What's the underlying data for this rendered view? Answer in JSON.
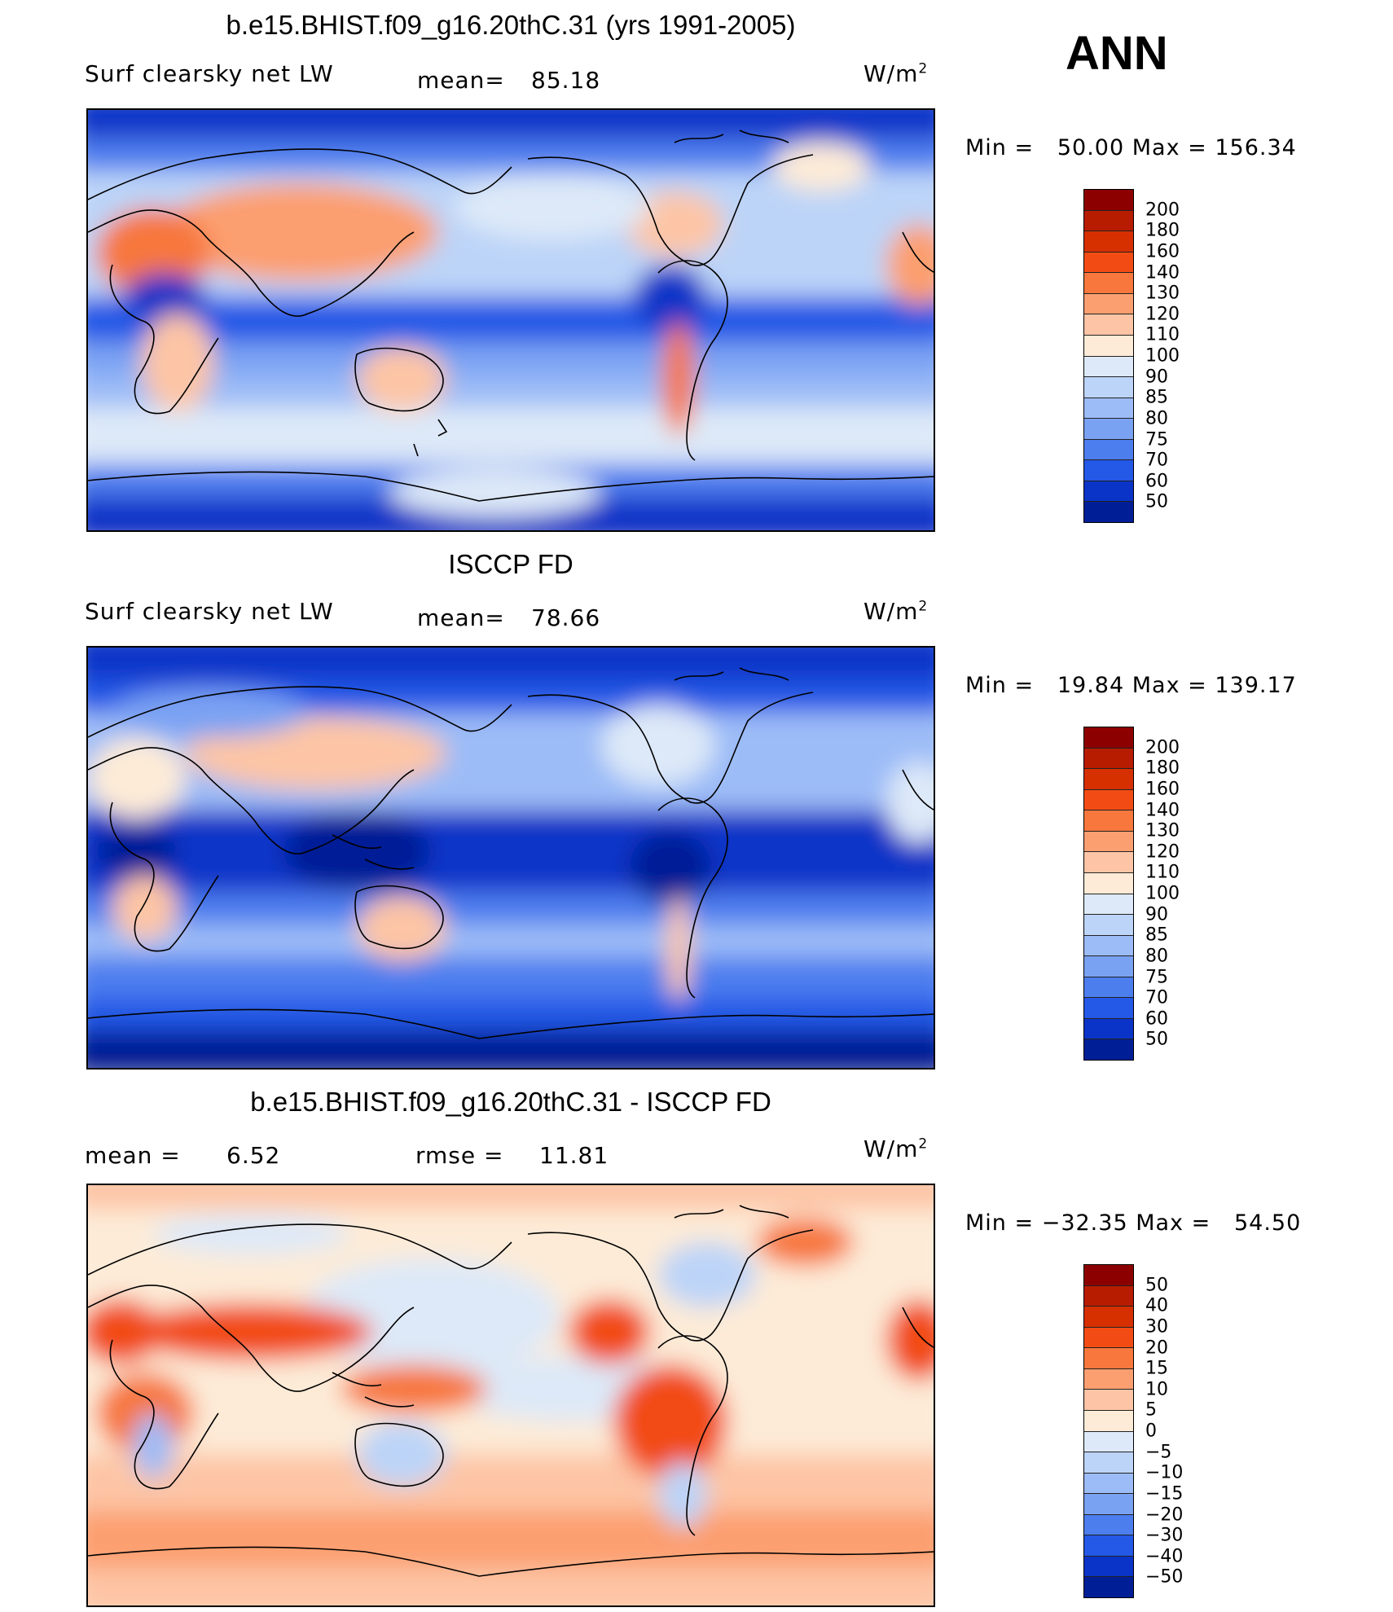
{
  "season": "ANN",
  "units": "W/m",
  "units_sup": "2",
  "panels": [
    {
      "title": "b.e15.BHIST.f09_g16.20thC.31 (yrs 1991-2005)",
      "field": "Surf clearsky net LW",
      "stat1_label": "mean=",
      "stat1_value": "85.18",
      "minmax": "Min =   50.00 Max = 156.34"
    },
    {
      "title": "ISCCP FD",
      "field": "Surf clearsky net LW",
      "stat1_label": "mean=",
      "stat1_value": "78.66",
      "minmax": "Min =   19.84 Max = 139.17"
    },
    {
      "title": "b.e15.BHIST.f09_g16.20thC.31 - ISCCP FD",
      "stat1_label": "mean =",
      "stat1_value": "6.52",
      "stat2_label": "rmse =",
      "stat2_value": "11.81",
      "minmax": "Min = −32.35 Max =   54.50"
    }
  ],
  "colorbar_abs": {
    "levels": [
      "200",
      "180",
      "160",
      "140",
      "130",
      "120",
      "110",
      "100",
      "90",
      "85",
      "80",
      "75",
      "70",
      "60",
      "50"
    ],
    "colors": [
      "#8c0000",
      "#b81c00",
      "#d63000",
      "#f24c14",
      "#f7773d",
      "#fc9f70",
      "#fdc5a5",
      "#fdebd7",
      "#dde9f8",
      "#bcd4f8",
      "#9cbcf7",
      "#7aa2f3",
      "#4d7eee",
      "#2458e6",
      "#0a34c8",
      "#001f96"
    ]
  },
  "colorbar_diff": {
    "levels": [
      "50",
      "40",
      "30",
      "20",
      "15",
      "10",
      "5",
      "0",
      "−5",
      "−10",
      "−15",
      "−20",
      "−30",
      "−40",
      "−50"
    ],
    "colors": [
      "#8c0000",
      "#b81c00",
      "#d63000",
      "#f24c14",
      "#f7773d",
      "#fc9f70",
      "#fdc5a5",
      "#fdebd7",
      "#dde9f8",
      "#bcd4f8",
      "#9cbcf7",
      "#7aa2f3",
      "#4d7eee",
      "#2458e6",
      "#0a34c8",
      "#001f96"
    ]
  }
}
